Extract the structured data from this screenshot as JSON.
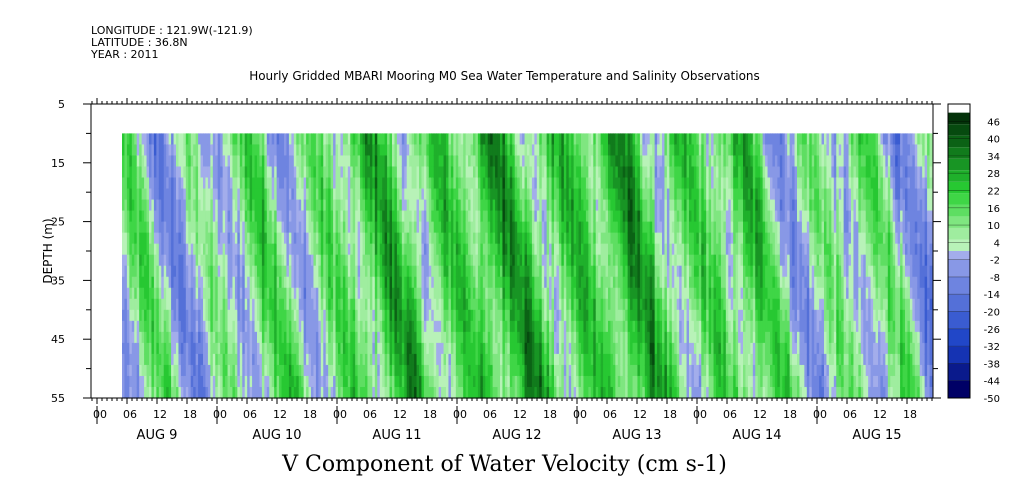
{
  "header": {
    "longitude": "LONGITUDE : 121.9W(-121.9)",
    "latitude": "LATITUDE : 36.8N",
    "year": "YEAR : 2011",
    "title": "Hourly Gridded MBARI Mooring M0 Sea Water Temperature and Salinity Observations"
  },
  "chart_data": {
    "type": "heatmap",
    "xlabel": "V Component of Water Velocity (cm s-1)",
    "ylabel": "DEPTH (m)",
    "ylim": [
      55,
      5
    ],
    "y_ticks": [
      "5",
      "15",
      "25",
      "35",
      "45",
      "55"
    ],
    "x_hour_ticks": [
      "00",
      "06",
      "12",
      "18",
      "00",
      "06",
      "12",
      "18",
      "00",
      "06",
      "12",
      "18",
      "00",
      "06",
      "12",
      "18",
      "00",
      "06",
      "12",
      "18",
      "00",
      "06",
      "12",
      "18",
      "00",
      "06",
      "12",
      "18"
    ],
    "x_day_labels": [
      "AUG  9",
      "AUG 10",
      "AUG 11",
      "AUG 12",
      "AUG 13",
      "AUG 14",
      "AUG 15"
    ],
    "data_depth_range": [
      10,
      55
    ],
    "data_time_range_hours": [
      5,
      167
    ],
    "colorbar": {
      "ticks": [
        "46",
        "40",
        "34",
        "28",
        "22",
        "16",
        "10",
        "4",
        "-2",
        "-8",
        "-14",
        "-20",
        "-26",
        "-32",
        "-38",
        "-44",
        "-50"
      ],
      "range": [
        -50,
        52
      ],
      "negative_colors": [
        "#000066",
        "#0a1a8c",
        "#1533b3",
        "#2147c8",
        "#3a5cd1",
        "#5470d8",
        "#6e84e0",
        "#8898e6",
        "#a3adeb",
        "#b8bff0"
      ],
      "positive_colors": [
        "#b8f2b8",
        "#9fed9f",
        "#7fe680",
        "#5ede62",
        "#3fd646",
        "#27c832",
        "#1fb02b",
        "#189524",
        "#117b1c",
        "#0b6215",
        "#064a0f",
        "#033209"
      ]
    },
    "hovmoller_velocity_by_day": [
      {
        "day": "AUG  9",
        "dominant": "mixed",
        "range": [
          -8,
          10
        ]
      },
      {
        "day": "AUG 10",
        "dominant": "mixed",
        "range": [
          -8,
          16
        ]
      },
      {
        "day": "AUG 11",
        "dominant": "positive",
        "range": [
          -8,
          28
        ]
      },
      {
        "day": "AUG 12",
        "dominant": "positive",
        "range": [
          -8,
          28
        ]
      },
      {
        "day": "AUG 13",
        "dominant": "positive",
        "range": [
          -8,
          28
        ]
      },
      {
        "day": "AUG 14",
        "dominant": "mixed",
        "range": [
          -8,
          22
        ]
      },
      {
        "day": "AUG 15",
        "dominant": "mixed",
        "range": [
          -8,
          16
        ]
      }
    ]
  }
}
